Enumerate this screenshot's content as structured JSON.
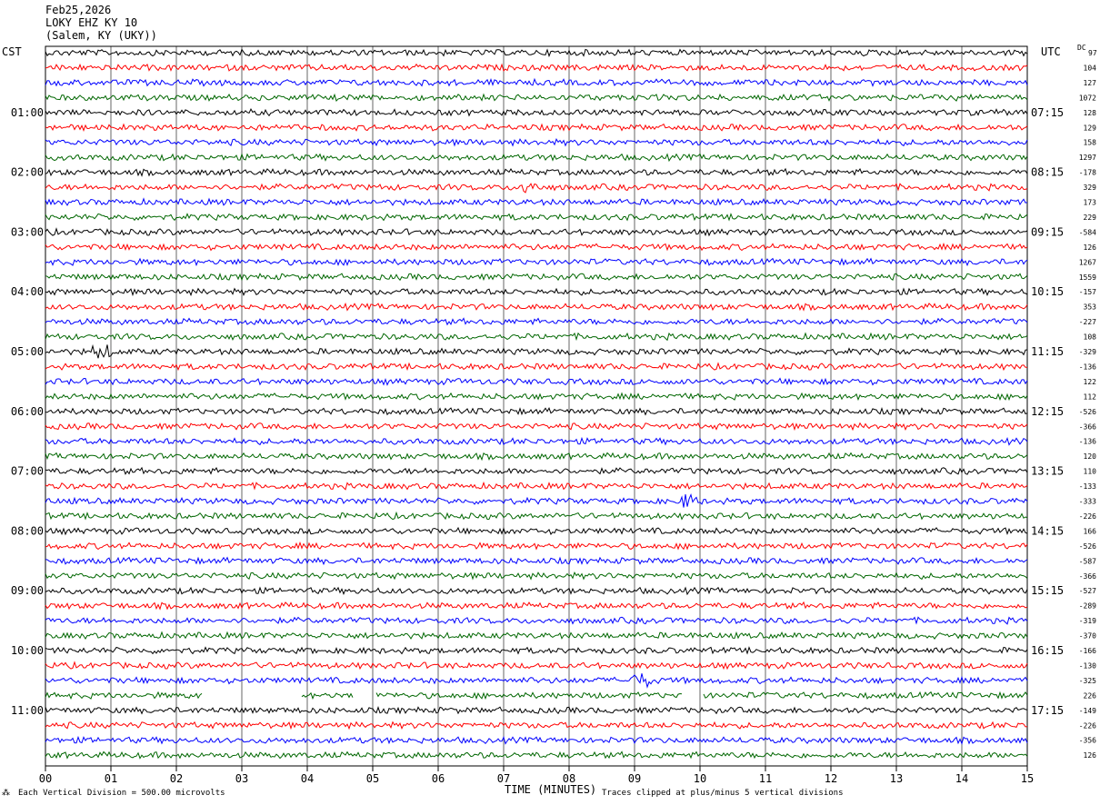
{
  "header": {
    "date": "Feb25,2026",
    "station": "LOKY EHZ KY 10",
    "location": "(Salem, KY (UKY))"
  },
  "left_axis_label": "CST",
  "right_axis_label": "UTC",
  "dc_label": "DC",
  "dc_first": "97",
  "footer": {
    "left_mark": "⁂",
    "scale_note": "Each Vertical Division =  500.00 microvolts",
    "clip_note": "Traces clipped at plus/minus 5 vertical divisions"
  },
  "colors": {
    "trace_cycle": [
      "#000000",
      "#ff0000",
      "#0000ff",
      "#006600"
    ],
    "grid": "#000000"
  },
  "chart_data": {
    "type": "line",
    "xlabel": "TIME (MINUTES)",
    "xlim": [
      0,
      15
    ],
    "x_ticks": [
      "00",
      "01",
      "02",
      "03",
      "04",
      "05",
      "06",
      "07",
      "08",
      "09",
      "10",
      "11",
      "12",
      "13",
      "14",
      "15"
    ],
    "trace_count": 48,
    "cst_hour_labels": [
      "01:00",
      "02:00",
      "03:00",
      "04:00",
      "05:00",
      "06:00",
      "07:00",
      "08:00",
      "09:00",
      "10:00",
      "11:00"
    ],
    "utc_hour_labels": [
      "07:15",
      "08:15",
      "09:15",
      "10:15",
      "11:15",
      "12:15",
      "13:15",
      "14:15",
      "15:15",
      "16:15",
      "17:15"
    ],
    "dc_offsets": [
      "104",
      "127",
      "1072",
      "128",
      "129",
      "158",
      "1297",
      "-178",
      "329",
      "173",
      "229",
      "-584",
      "126",
      "1267",
      "1559",
      "-157",
      "353",
      "-227",
      "108",
      "-329",
      "-136",
      "122",
      "112",
      "-526",
      "-366",
      "-136",
      "120",
      "110",
      "-133",
      "-333",
      "-226",
      "166",
      "-526",
      "-587",
      "-366",
      "-527",
      "-289",
      "-319",
      "-370",
      "-166",
      "-130",
      "-325",
      "226",
      "-149",
      "-226",
      "-356",
      "126"
    ]
  }
}
